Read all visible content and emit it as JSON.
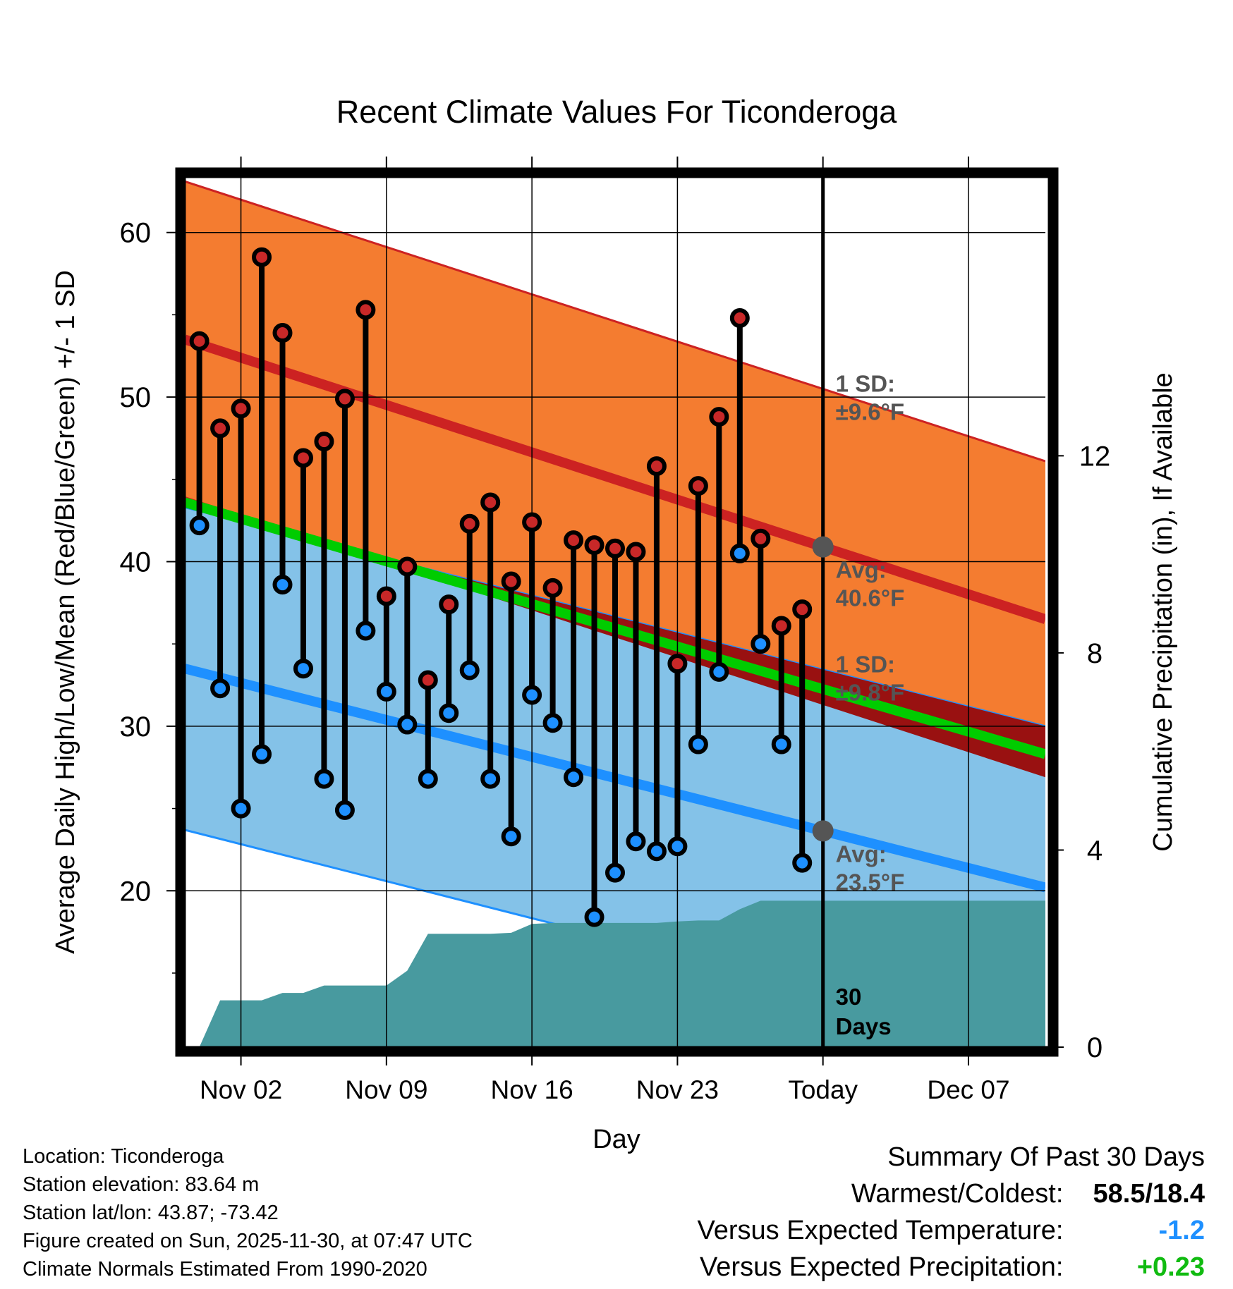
{
  "chart_data": {
    "type": "line",
    "title": "Recent Climate Values For Ticonderoga",
    "xlabel": "Day",
    "ylabel": "Average Daily High/Low/Mean (Red/Blue/Green) +/- 1 SD",
    "y2label": "Cumulative Precipitation (in), If Available",
    "ylim": [
      10.5,
      63.5
    ],
    "y2lim": [
      0,
      17.7
    ],
    "xlim": [
      -0.7,
      40.7
    ],
    "today_index": 30,
    "x_ticks": [
      {
        "day": 2,
        "label": "Nov 02"
      },
      {
        "day": 9,
        "label": "Nov 09"
      },
      {
        "day": 16,
        "label": "Nov 16"
      },
      {
        "day": 23,
        "label": "Nov 23"
      },
      {
        "day": 30,
        "label": "Today"
      },
      {
        "day": 37,
        "label": "Dec 07"
      }
    ],
    "y_ticks": [
      20,
      30,
      40,
      50,
      60
    ],
    "y2_ticks": [
      0,
      4,
      8,
      12
    ],
    "normals": {
      "day_start": -0.7,
      "day_end": 40.7,
      "high_avg": [
        53.5,
        36.5
      ],
      "high_sd": 9.6,
      "low_avg": [
        33.5,
        20.2
      ],
      "low_sd": 9.8,
      "mean_avg": [
        43.6,
        28.3
      ]
    },
    "series": [
      {
        "name": "Daily High",
        "values": [
          53.4,
          48.1,
          49.3,
          58.5,
          53.9,
          46.3,
          47.3,
          49.9,
          55.3,
          37.9,
          39.7,
          32.8,
          37.4,
          42.3,
          43.6,
          38.8,
          42.4,
          38.4,
          41.3,
          41.0,
          40.8,
          40.6,
          45.8,
          33.8,
          44.6,
          48.8,
          54.8,
          41.4,
          36.1,
          37.1
        ]
      },
      {
        "name": "Daily Low",
        "values": [
          42.2,
          32.3,
          25.0,
          28.3,
          38.6,
          33.5,
          26.8,
          24.9,
          35.8,
          32.1,
          30.1,
          26.8,
          30.8,
          33.4,
          26.8,
          23.3,
          31.9,
          30.2,
          26.9,
          18.4,
          21.1,
          23.0,
          22.4,
          22.7,
          28.9,
          33.3,
          40.5,
          35.0,
          28.9,
          21.7
        ]
      },
      {
        "name": "Cumulative Precipitation",
        "x": [
          0,
          1,
          2,
          3,
          4,
          5,
          6,
          7,
          8,
          9,
          10,
          11,
          12,
          13,
          14,
          15,
          16,
          17,
          18,
          19,
          20,
          21,
          22,
          23,
          24,
          25,
          26,
          27,
          28,
          29,
          30,
          40.7
        ],
        "values": [
          0.0,
          0.95,
          0.95,
          0.95,
          1.1,
          1.1,
          1.25,
          1.25,
          1.25,
          1.25,
          1.55,
          2.3,
          2.3,
          2.3,
          2.3,
          2.32,
          2.5,
          2.52,
          2.52,
          2.52,
          2.52,
          2.52,
          2.52,
          2.55,
          2.57,
          2.57,
          2.8,
          2.97,
          2.97,
          2.97,
          2.97,
          2.97
        ]
      }
    ],
    "annotations": {
      "high_sd_title": "1 SD:",
      "high_sd_value": "±9.6°F",
      "high_avg_title": "Avg:",
      "high_avg_value": "40.6°F",
      "low_sd_title": "1 SD:",
      "low_sd_value": "±9.8°F",
      "low_avg_title": "Avg:",
      "low_avg_value": "23.5°F",
      "period_line1": "30",
      "period_line2": "Days"
    },
    "colors": {
      "high_band": "#F47C30",
      "high_line": "#CC2222",
      "low_band": "#84C2E8",
      "low_line": "#1E90FF",
      "mean_line": "#00CC00",
      "overlap": "#991111",
      "precip": "#489A9F",
      "high_marker": "#C82828",
      "low_marker": "#1E90FF",
      "annotation": "#555555",
      "today_marker": "#555555"
    }
  },
  "footer": {
    "location": "Location: Ticonderoga",
    "elevation": "Station elevation: 83.64 m",
    "latlon": "Station lat/lon: 43.87; -73.42",
    "created": "Figure created on Sun, 2025-11-30, at 07:47 UTC",
    "normals": "Climate Normals Estimated From 1990-2020"
  },
  "summary": {
    "title": "Summary Of Past 30 Days",
    "warmest_coldest_label": "Warmest/Coldest:",
    "warmest_coldest_value": "58.5/18.4",
    "temp_label": "Versus Expected Temperature:",
    "temp_value": "-1.2",
    "temp_color": "#1E90FF",
    "precip_label": "Versus Expected Precipitation:",
    "precip_value": "+0.23",
    "precip_color": "#11BB11"
  }
}
